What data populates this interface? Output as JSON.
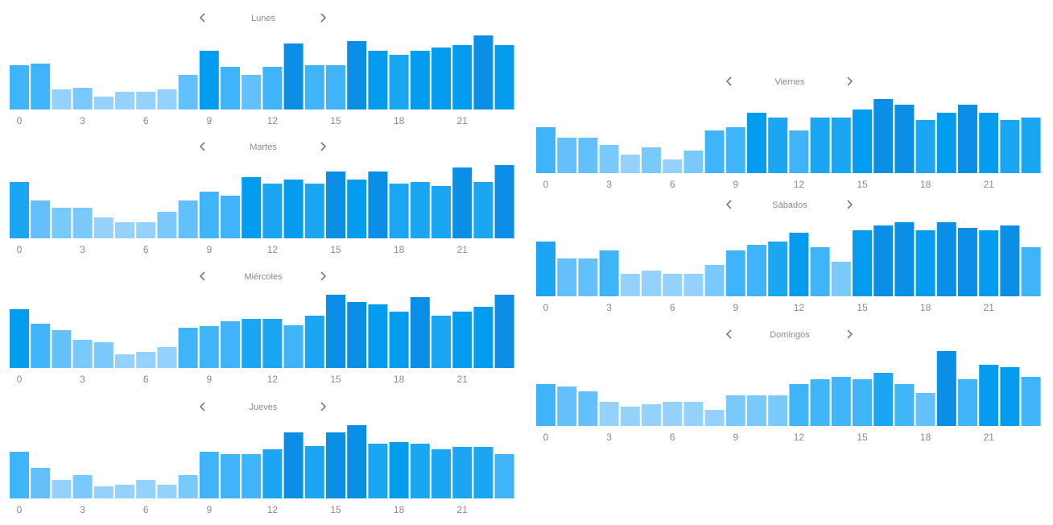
{
  "colors": [
    "#94d2fc",
    "#79c9fb",
    "#63c0fb",
    "#40b4f8",
    "#1ba6f4",
    "#049cee",
    "#0a8ee6"
  ],
  "nav": {
    "prev_icon": "chevron-left-icon",
    "next_icon": "chevron-right-icon"
  },
  "chart_data": [
    {
      "type": "bar",
      "title": "Lunes",
      "x": [
        0,
        1,
        2,
        3,
        4,
        5,
        6,
        7,
        8,
        9,
        10,
        11,
        12,
        13,
        14,
        15,
        16,
        17,
        18,
        19,
        20,
        21,
        22,
        23
      ],
      "xticks": [
        "0",
        "3",
        "6",
        "9",
        "12",
        "15",
        "18",
        "21"
      ],
      "values": [
        55,
        57,
        25,
        27,
        16,
        22,
        22,
        25,
        43,
        73,
        53,
        43,
        53,
        82,
        55,
        55,
        85,
        73,
        68,
        73,
        77,
        80,
        92,
        80
      ],
      "ylim": [
        0,
        100
      ],
      "grid": false
    },
    {
      "type": "bar",
      "title": "Martes",
      "x": [
        0,
        1,
        2,
        3,
        4,
        5,
        6,
        7,
        8,
        9,
        10,
        11,
        12,
        13,
        14,
        15,
        16,
        17,
        18,
        19,
        20,
        21,
        22,
        23
      ],
      "xticks": [
        "0",
        "3",
        "6",
        "9",
        "12",
        "15",
        "18",
        "21"
      ],
      "values": [
        70,
        47,
        38,
        38,
        26,
        20,
        20,
        33,
        47,
        58,
        53,
        76,
        68,
        73,
        68,
        83,
        73,
        83,
        68,
        70,
        65,
        88,
        70,
        91
      ],
      "ylim": [
        0,
        100
      ],
      "grid": false
    },
    {
      "type": "bar",
      "title": "Miércoles",
      "x": [
        0,
        1,
        2,
        3,
        4,
        5,
        6,
        7,
        8,
        9,
        10,
        11,
        12,
        13,
        14,
        15,
        16,
        17,
        18,
        19,
        20,
        21,
        22,
        23
      ],
      "xticks": [
        "0",
        "3",
        "6",
        "9",
        "12",
        "15",
        "18",
        "21"
      ],
      "values": [
        73,
        55,
        47,
        35,
        32,
        17,
        20,
        26,
        50,
        52,
        58,
        61,
        61,
        53,
        65,
        91,
        82,
        79,
        70,
        88,
        65,
        70,
        76,
        91
      ],
      "ylim": [
        0,
        100
      ],
      "grid": false
    },
    {
      "type": "bar",
      "title": "Jueves",
      "x": [
        0,
        1,
        2,
        3,
        4,
        5,
        6,
        7,
        8,
        9,
        10,
        11,
        12,
        13,
        14,
        15,
        16,
        17,
        18,
        19,
        20,
        21,
        22,
        23
      ],
      "xticks": [
        "0",
        "3",
        "6",
        "9",
        "12",
        "15",
        "18",
        "21"
      ],
      "values": [
        58,
        38,
        23,
        29,
        15,
        17,
        23,
        17,
        29,
        58,
        55,
        55,
        61,
        82,
        65,
        82,
        91,
        68,
        70,
        68,
        61,
        64,
        64,
        55
      ],
      "ylim": [
        0,
        100
      ],
      "grid": false
    },
    {
      "type": "bar",
      "title": "Viernes",
      "x": [
        0,
        1,
        2,
        3,
        4,
        5,
        6,
        7,
        8,
        9,
        10,
        11,
        12,
        13,
        14,
        15,
        16,
        17,
        18,
        19,
        20,
        21,
        22,
        23
      ],
      "xticks": [
        "0",
        "3",
        "6",
        "9",
        "12",
        "15",
        "18",
        "21"
      ],
      "values": [
        57,
        44,
        44,
        35,
        23,
        32,
        17,
        28,
        53,
        57,
        75,
        69,
        53,
        69,
        69,
        79,
        92,
        85,
        66,
        75,
        85,
        75,
        66,
        69
      ],
      "ylim": [
        0,
        100
      ],
      "grid": false
    },
    {
      "type": "bar",
      "title": "Sábados",
      "x": [
        0,
        1,
        2,
        3,
        4,
        5,
        6,
        7,
        8,
        9,
        10,
        11,
        12,
        13,
        14,
        15,
        16,
        17,
        18,
        19,
        20,
        21,
        22,
        23
      ],
      "xticks": [
        "0",
        "3",
        "6",
        "9",
        "12",
        "15",
        "18",
        "21"
      ],
      "values": [
        68,
        47,
        47,
        57,
        28,
        32,
        28,
        28,
        39,
        57,
        64,
        68,
        79,
        61,
        43,
        82,
        88,
        92,
        82,
        92,
        85,
        82,
        88,
        61
      ],
      "ylim": [
        0,
        100
      ],
      "grid": false
    },
    {
      "type": "bar",
      "title": "Domingos",
      "x": [
        0,
        1,
        2,
        3,
        4,
        5,
        6,
        7,
        8,
        9,
        10,
        11,
        12,
        13,
        14,
        15,
        16,
        17,
        18,
        19,
        20,
        21,
        22,
        23
      ],
      "xticks": [
        "0",
        "3",
        "6",
        "9",
        "12",
        "15",
        "18",
        "21"
      ],
      "values": [
        52,
        49,
        43,
        30,
        24,
        27,
        30,
        30,
        20,
        38,
        38,
        38,
        52,
        58,
        61,
        58,
        66,
        52,
        41,
        93,
        58,
        76,
        73,
        61
      ],
      "ylim": [
        0,
        100
      ],
      "grid": false
    }
  ]
}
